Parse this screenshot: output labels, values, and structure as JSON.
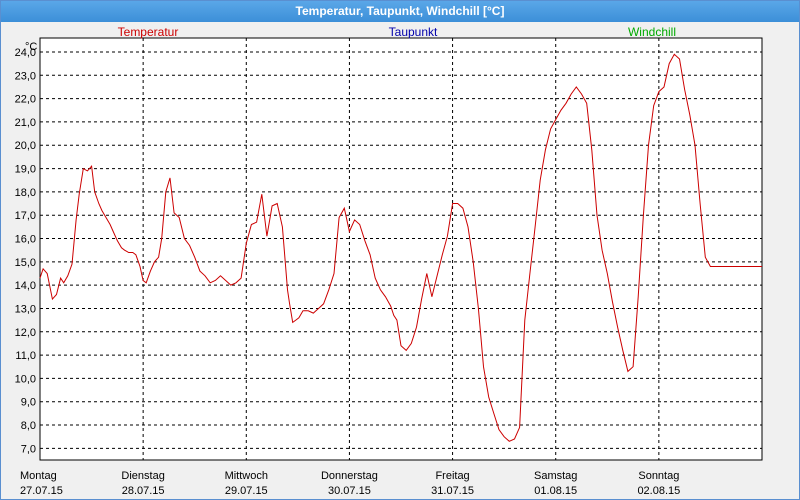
{
  "window": {
    "title": "Temperatur, Taupunkt, Windchill [°C]"
  },
  "chart_data": {
    "type": "line",
    "title": "Temperatur, Taupunkt, Windchill [°C]",
    "ylabel": "°C",
    "ylim": [
      6.5,
      24.6
    ],
    "grid": true,
    "legend": [
      {
        "name": "Temperatur",
        "color": "#cc0000"
      },
      {
        "name": "Taupunkt",
        "color": "#0000aa"
      },
      {
        "name": "Windchill",
        "color": "#00aa00"
      }
    ],
    "y_ticks": [
      "7,0",
      "8,0",
      "9,0",
      "10,0",
      "11,0",
      "12,0",
      "13,0",
      "14,0",
      "15,0",
      "16,0",
      "17,0",
      "18,0",
      "19,0",
      "20,0",
      "21,0",
      "22,0",
      "23,0",
      "24,0"
    ],
    "x_ticks": [
      {
        "day": "Montag",
        "date": "27.07.15"
      },
      {
        "day": "Dienstag",
        "date": "28.07.15"
      },
      {
        "day": "Mittwoch",
        "date": "29.07.15"
      },
      {
        "day": "Donnerstag",
        "date": "30.07.15"
      },
      {
        "day": "Freitag",
        "date": "31.07.15"
      },
      {
        "day": "Samstag",
        "date": "01.08.15"
      },
      {
        "day": "Sonntag",
        "date": "02.08.15"
      }
    ],
    "series": [
      {
        "name": "Temperatur",
        "color": "#cc0000",
        "x": [
          0,
          0.03,
          0.07,
          0.12,
          0.16,
          0.2,
          0.23,
          0.27,
          0.31,
          0.35,
          0.38,
          0.42,
          0.46,
          0.5,
          0.53,
          0.57,
          0.6,
          0.64,
          0.68,
          0.71,
          0.75,
          0.79,
          0.82,
          0.86,
          0.9,
          0.93,
          0.97,
          1.0,
          1.03,
          1.07,
          1.11,
          1.15,
          1.18,
          1.22,
          1.26,
          1.3,
          1.35,
          1.4,
          1.45,
          1.5,
          1.55,
          1.6,
          1.65,
          1.7,
          1.75,
          1.8,
          1.85,
          1.9,
          1.95,
          2.0,
          2.05,
          2.1,
          2.15,
          2.2,
          2.25,
          2.3,
          2.35,
          2.4,
          2.42,
          2.45,
          2.48,
          2.51,
          2.55,
          2.6,
          2.65,
          2.7,
          2.75,
          2.8,
          2.85,
          2.9,
          2.95,
          3.0,
          3.05,
          3.1,
          3.15,
          3.2,
          3.25,
          3.3,
          3.35,
          3.4,
          3.43,
          3.46,
          3.5,
          3.55,
          3.6,
          3.65,
          3.7,
          3.75,
          3.8,
          3.85,
          3.9,
          3.95,
          4.0,
          4.05,
          4.1,
          4.15,
          4.2,
          4.25,
          4.3,
          4.35,
          4.4,
          4.45,
          4.5,
          4.55,
          4.6,
          4.65,
          4.7,
          4.75,
          4.8,
          4.85,
          4.9,
          4.95,
          5.0,
          5.05,
          5.1,
          5.15,
          5.2,
          5.25,
          5.3,
          5.35,
          5.4,
          5.45,
          5.5,
          5.55,
          5.6,
          5.65,
          5.7,
          5.75,
          5.8,
          5.85,
          5.9,
          5.95,
          6.0,
          6.05,
          6.1,
          6.15,
          6.2,
          6.25,
          6.3,
          6.35,
          6.4,
          6.45,
          6.5,
          6.55,
          6.6,
          6.65,
          6.7,
          6.75,
          6.8,
          6.85,
          6.9,
          6.95,
          7.0
        ],
        "values": [
          14.3,
          14.7,
          14.5,
          13.4,
          13.6,
          14.3,
          14.1,
          14.4,
          14.9,
          16.8,
          17.9,
          19.0,
          18.9,
          19.1,
          18.0,
          17.5,
          17.2,
          16.9,
          16.6,
          16.3,
          15.9,
          15.6,
          15.5,
          15.4,
          15.4,
          15.3,
          14.8,
          14.2,
          14.1,
          14.6,
          15.0,
          15.2,
          16.0,
          18.0,
          18.6,
          17.1,
          16.9,
          16.0,
          15.7,
          15.2,
          14.6,
          14.4,
          14.1,
          14.2,
          14.4,
          14.2,
          14.0,
          14.1,
          14.3,
          15.8,
          16.6,
          16.7,
          17.9,
          16.1,
          17.4,
          17.5,
          16.5,
          13.8,
          13.2,
          12.4,
          12.5,
          12.6,
          12.9,
          12.9,
          12.8,
          13.0,
          13.2,
          13.8,
          14.5,
          16.9,
          17.3,
          16.3,
          16.8,
          16.6,
          15.9,
          15.3,
          14.3,
          13.8,
          13.5,
          13.1,
          12.7,
          12.5,
          11.4,
          11.2,
          11.5,
          12.2,
          13.4,
          14.5,
          13.5,
          14.4,
          15.3,
          16.1,
          17.5,
          17.5,
          17.3,
          16.5,
          15.0,
          13.0,
          10.5,
          9.2,
          8.5,
          7.8,
          7.5,
          7.3,
          7.4,
          7.9,
          12.5,
          14.5,
          16.5,
          18.5,
          19.8,
          20.7,
          21.1,
          21.5,
          21.8,
          22.2,
          22.5,
          22.2,
          21.8,
          19.8,
          17.0,
          15.5,
          14.5,
          13.3,
          12.2,
          11.2,
          10.3,
          10.5,
          13.5,
          17.0,
          20.0,
          21.7,
          22.3,
          22.5,
          23.5,
          23.9,
          23.7,
          22.4,
          21.3,
          20.0,
          17.5,
          15.2,
          14.8,
          14.8,
          14.8,
          14.8,
          14.8,
          14.8,
          14.8,
          14.8,
          14.8,
          14.8,
          14.8
        ]
      }
    ]
  }
}
